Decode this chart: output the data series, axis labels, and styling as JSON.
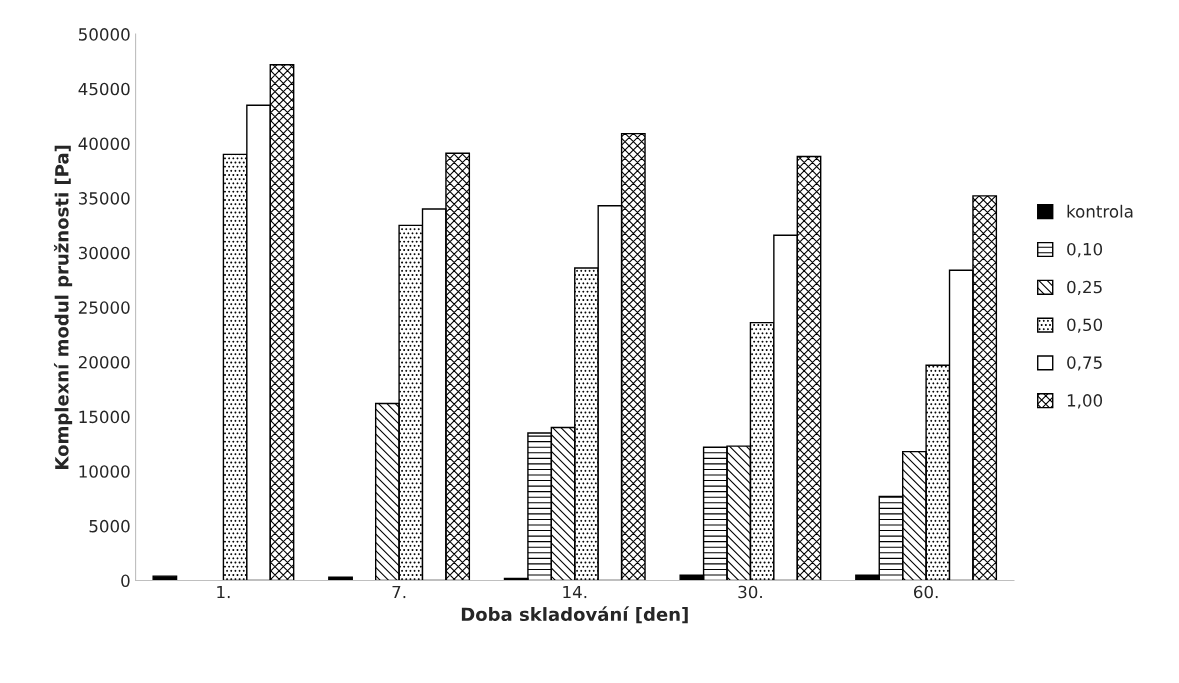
{
  "chart_data": {
    "type": "bar",
    "xlabel": "Doba skladování [den]",
    "ylabel": "Komplexní modul pružnosti [Pa]",
    "categories": [
      "1.",
      "7.",
      "14.",
      "30.",
      "60."
    ],
    "series": [
      {
        "name": "kontrola",
        "color": "#000000",
        "values": [
          400,
          300,
          200,
          500,
          500
        ]
      },
      {
        "name": "0,10",
        "color": "#000000",
        "values": [
          null,
          null,
          13500,
          12200,
          7700
        ]
      },
      {
        "name": "0,25",
        "color": "#000000",
        "values": [
          null,
          16200,
          14000,
          12300,
          11800
        ]
      },
      {
        "name": "0,50",
        "color": "#000000",
        "values": [
          39000,
          32500,
          28600,
          23600,
          19700
        ]
      },
      {
        "name": "0,75",
        "color": "#ffffff",
        "values": [
          43500,
          34000,
          34300,
          31600,
          28400
        ]
      },
      {
        "name": "1,00",
        "color": "#000000",
        "values": [
          47200,
          39100,
          40900,
          38800,
          35200
        ]
      }
    ],
    "ylim": [
      0,
      50000
    ],
    "yticks": [
      0,
      5000,
      10000,
      15000,
      20000,
      25000,
      30000,
      35000,
      40000,
      45000,
      50000
    ],
    "grid": false,
    "legend": "right"
  }
}
